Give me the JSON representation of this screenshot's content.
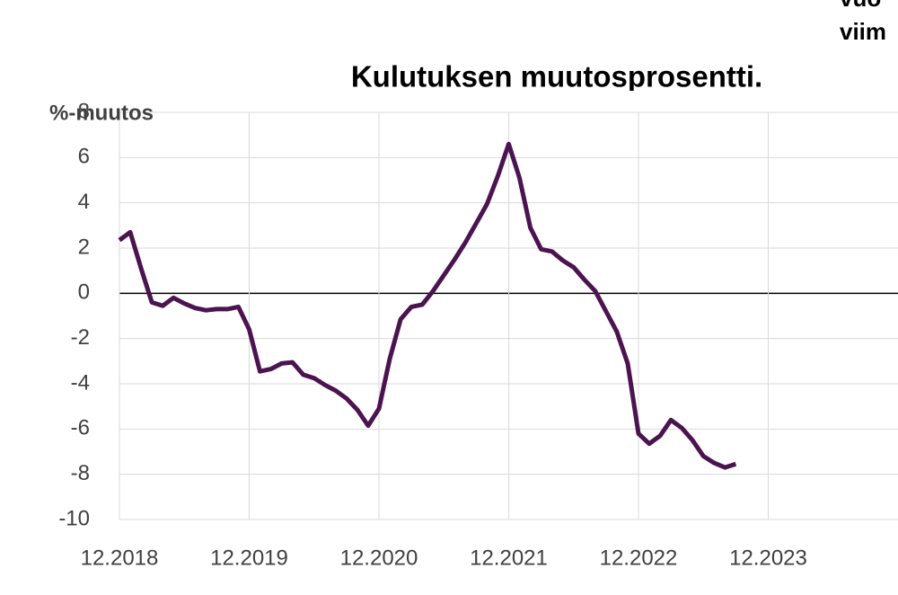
{
  "chart_data": {
    "type": "line",
    "title": "Kulutuksen muutosprosentti.",
    "corner_texts": [
      "vuo",
      "viim"
    ],
    "y_label": "%-muutos",
    "x": [
      "12.2018",
      "01.2019",
      "02.2019",
      "03.2019",
      "04.2019",
      "05.2019",
      "06.2019",
      "07.2019",
      "08.2019",
      "09.2019",
      "10.2019",
      "11.2019",
      "12.2019",
      "01.2020",
      "02.2020",
      "03.2020",
      "04.2020",
      "05.2020",
      "06.2020",
      "07.2020",
      "08.2020",
      "09.2020",
      "10.2020",
      "11.2020",
      "12.2020",
      "01.2021",
      "02.2021",
      "03.2021",
      "04.2021",
      "05.2021",
      "06.2021",
      "07.2021",
      "08.2021",
      "09.2021",
      "10.2021",
      "11.2021",
      "12.2021",
      "01.2022",
      "02.2022",
      "03.2022",
      "04.2022",
      "05.2022",
      "06.2022",
      "07.2022",
      "08.2022",
      "09.2022",
      "10.2022",
      "11.2022",
      "12.2022",
      "01.2023",
      "02.2023",
      "03.2023",
      "04.2023",
      "05.2023",
      "06.2023",
      "07.2023",
      "08.2023",
      "09.2023"
    ],
    "series": [
      {
        "color": "#4b1350",
        "values": [
          2.35,
          2.7,
          1.1,
          -0.4,
          -0.55,
          -0.2,
          -0.45,
          -0.65,
          -0.75,
          -0.7,
          -0.7,
          -0.6,
          -1.6,
          -3.45,
          -3.35,
          -3.1,
          -3.05,
          -3.6,
          -3.75,
          -4.05,
          -4.3,
          -4.65,
          -5.15,
          -5.85,
          -5.1,
          -2.9,
          -1.15,
          -0.6,
          -0.5,
          0.1,
          0.8,
          1.5,
          2.25,
          3.1,
          3.95,
          5.2,
          6.6,
          5.1,
          2.9,
          1.95,
          1.85,
          1.45,
          1.15,
          0.6,
          0.1,
          -0.8,
          -1.7,
          -3.1,
          -6.2,
          -6.65,
          -6.3,
          -5.6,
          -5.95,
          -6.5,
          -7.2,
          -7.5,
          -7.7,
          -7.55
        ]
      }
    ],
    "xlim": [
      "12.2018",
      "12.2024"
    ],
    "xticks": [
      "12.2018",
      "12.2019",
      "12.2020",
      "12.2021",
      "12.2022",
      "12.2023"
    ],
    "ylim": [
      -10,
      8
    ],
    "yticks": [
      -10,
      -8,
      -6,
      -4,
      -2,
      0,
      2,
      4,
      6,
      8
    ],
    "grid": true
  }
}
